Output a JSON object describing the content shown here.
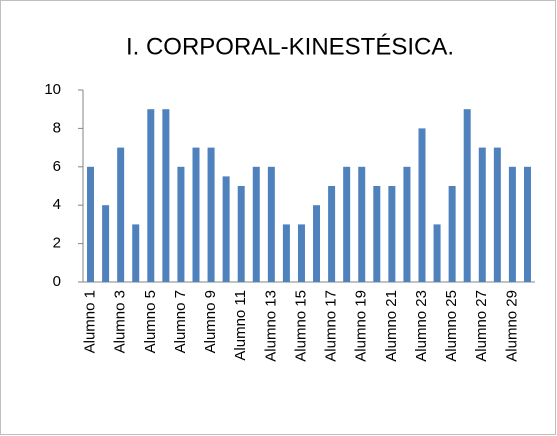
{
  "chart_data": {
    "type": "bar",
    "title": "I. CORPORAL-KINESTÉSICA.",
    "categories": [
      "Alumno 1",
      null,
      "Alumno 3",
      null,
      "Alumno 5",
      null,
      "Alumno 7",
      null,
      "Alumno 9",
      null,
      "Alumno 11",
      null,
      "Alumno 13",
      null,
      "Alumno 15",
      null,
      "Alumno 17",
      null,
      "Alumno 19",
      null,
      "Alumno 21",
      null,
      "Alumno 23",
      null,
      "Alumno 25",
      null,
      "Alumno 27",
      null,
      "Alumno 29",
      null
    ],
    "values": [
      6,
      4,
      7,
      3,
      9,
      9,
      6,
      7,
      7,
      5.5,
      5,
      6,
      6,
      3,
      3,
      4,
      5,
      6,
      6,
      5,
      5,
      6,
      8,
      3,
      5,
      9,
      7,
      7,
      6,
      6
    ],
    "color": "#4f81bd",
    "ylim": [
      0,
      10
    ],
    "yticks": [
      0,
      2,
      4,
      6,
      8,
      10
    ],
    "grid": false
  }
}
